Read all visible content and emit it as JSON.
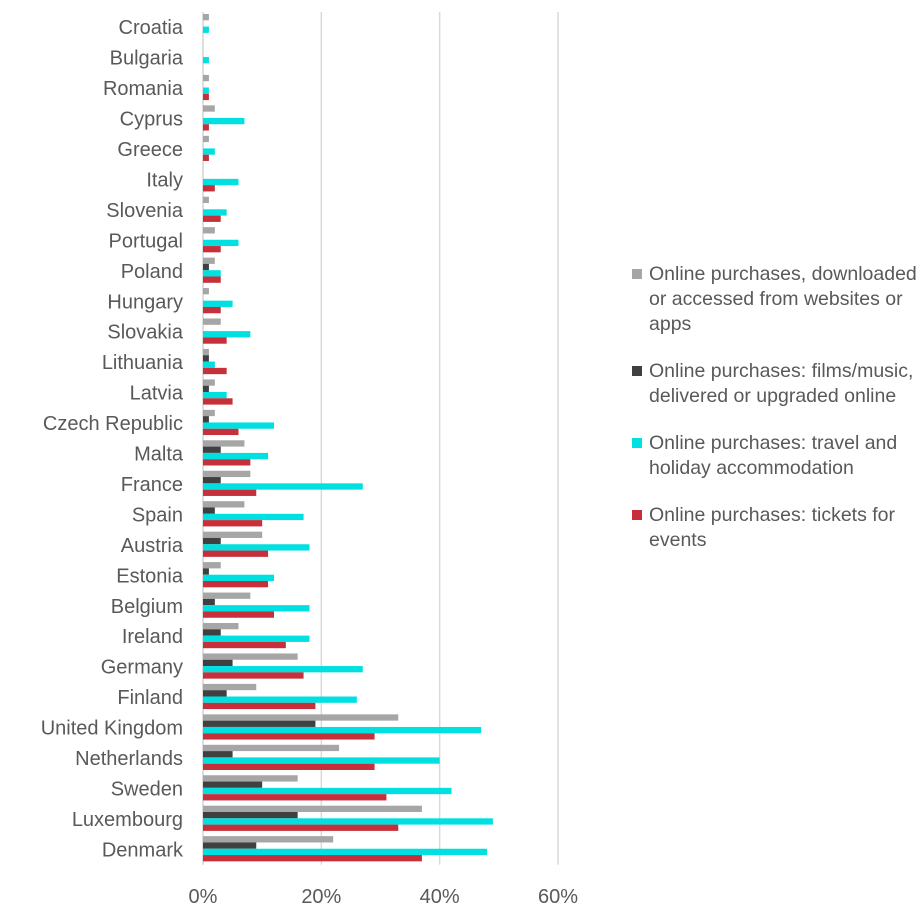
{
  "chart_data": {
    "type": "bar",
    "orientation": "horizontal",
    "categories": [
      "Croatia",
      "Bulgaria",
      "Romania",
      "Cyprus",
      "Greece",
      "Italy",
      "Slovenia",
      "Portugal",
      "Poland",
      "Hungary",
      "Slovakia",
      "Lithuania",
      "Latvia",
      "Czech Republic",
      "Malta",
      "France",
      "Spain",
      "Austria",
      "Estonia",
      "Belgium",
      "Ireland",
      "Germany",
      "Finland",
      "United Kingdom",
      "Netherlands",
      "Sweden",
      "Luxembourg",
      "Denmark"
    ],
    "series": [
      {
        "name": "Online purchases, downloaded or accessed from websites or apps",
        "color": "#a6a6a6",
        "values": [
          1,
          0,
          1,
          2,
          1,
          0,
          1,
          2,
          2,
          1,
          3,
          1,
          2,
          2,
          7,
          8,
          7,
          10,
          3,
          8,
          6,
          16,
          9,
          33,
          23,
          16,
          37,
          22
        ]
      },
      {
        "name": "Online purchases: films/music, delivered or upgraded online",
        "color": "#404040",
        "values": [
          0,
          0,
          0,
          0,
          0,
          0,
          0,
          0,
          1,
          0,
          0,
          1,
          1,
          1,
          3,
          3,
          2,
          3,
          1,
          2,
          3,
          5,
          4,
          19,
          5,
          10,
          16,
          9
        ]
      },
      {
        "name": "Online purchases: travel and holiday accommodation",
        "color": "#00e0e0",
        "values": [
          1,
          1,
          1,
          7,
          2,
          6,
          4,
          6,
          3,
          5,
          8,
          2,
          4,
          12,
          11,
          27,
          17,
          18,
          12,
          18,
          18,
          27,
          26,
          47,
          40,
          42,
          49,
          48
        ]
      },
      {
        "name": "Online purchases: tickets for events",
        "color": "#c6303a",
        "values": [
          0,
          0,
          1,
          1,
          1,
          2,
          3,
          3,
          3,
          3,
          4,
          4,
          5,
          6,
          8,
          9,
          10,
          11,
          11,
          12,
          14,
          17,
          19,
          29,
          29,
          31,
          33,
          37
        ]
      }
    ],
    "x_ticks": [
      "0%",
      "20%",
      "40%",
      "60%"
    ],
    "xlim": [
      0,
      60
    ],
    "grid": true,
    "legend_position": "right"
  }
}
